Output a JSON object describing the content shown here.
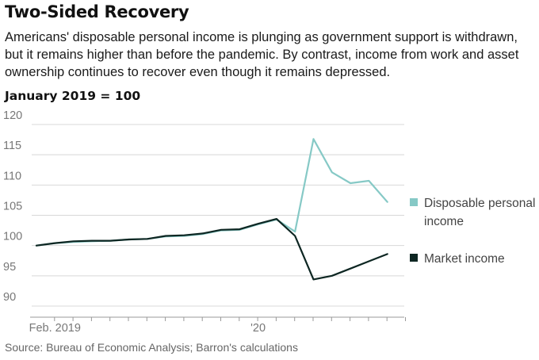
{
  "header": {
    "title": "Two-Sided Recovery",
    "subtitle": "Americans' disposable personal income is plunging as government support is withdrawn, but it remains higher than before the pandemic. By contrast, income from work and asset ownership continues to recover even though it remains depressed.",
    "unit_label": "January 2019 = 100"
  },
  "footer": {
    "source": "Source: Bureau of Economic Analysis; Barron's calculations"
  },
  "colors": {
    "disposable": "#86c9c6",
    "market": "#0d2622",
    "grid": "#d8d8d8",
    "axis": "#999999"
  },
  "chart_data": {
    "type": "line",
    "x": [
      "2019-01",
      "2019-02",
      "2019-03",
      "2019-04",
      "2019-05",
      "2019-06",
      "2019-07",
      "2019-08",
      "2019-09",
      "2019-10",
      "2019-11",
      "2019-12",
      "2020-01",
      "2020-02",
      "2020-03",
      "2020-04",
      "2020-05",
      "2020-06",
      "2020-07",
      "2020-08",
      "2020-09"
    ],
    "x_tick_labels": [
      {
        "x": "2019-02",
        "label": "Feb. 2019"
      },
      {
        "x": "2020-01",
        "label": "'20"
      }
    ],
    "ylim": [
      90,
      120
    ],
    "yticks": [
      90,
      95,
      100,
      105,
      110,
      115,
      120
    ],
    "grid": true,
    "legend_position": "right",
    "series": [
      {
        "name": "Disposable personal income",
        "legend_lines": [
          "Disposable personal",
          "income"
        ],
        "color_key": "disposable",
        "values": [
          100,
          100.4,
          100.6,
          100.7,
          100.8,
          101.0,
          101.1,
          101.5,
          101.6,
          101.9,
          102.5,
          102.6,
          103.5,
          104.3,
          102.3,
          117.6,
          112.1,
          110.3,
          110.7,
          107.2,
          null
        ]
      },
      {
        "name": "Market income",
        "legend_lines": [
          "Market income"
        ],
        "color_key": "market",
        "values": [
          100,
          100.4,
          100.7,
          100.8,
          100.8,
          101.0,
          101.1,
          101.6,
          101.7,
          102.0,
          102.6,
          102.7,
          103.6,
          104.4,
          101.6,
          94.4,
          95.0,
          96.2,
          97.4,
          98.6,
          null
        ]
      }
    ]
  }
}
